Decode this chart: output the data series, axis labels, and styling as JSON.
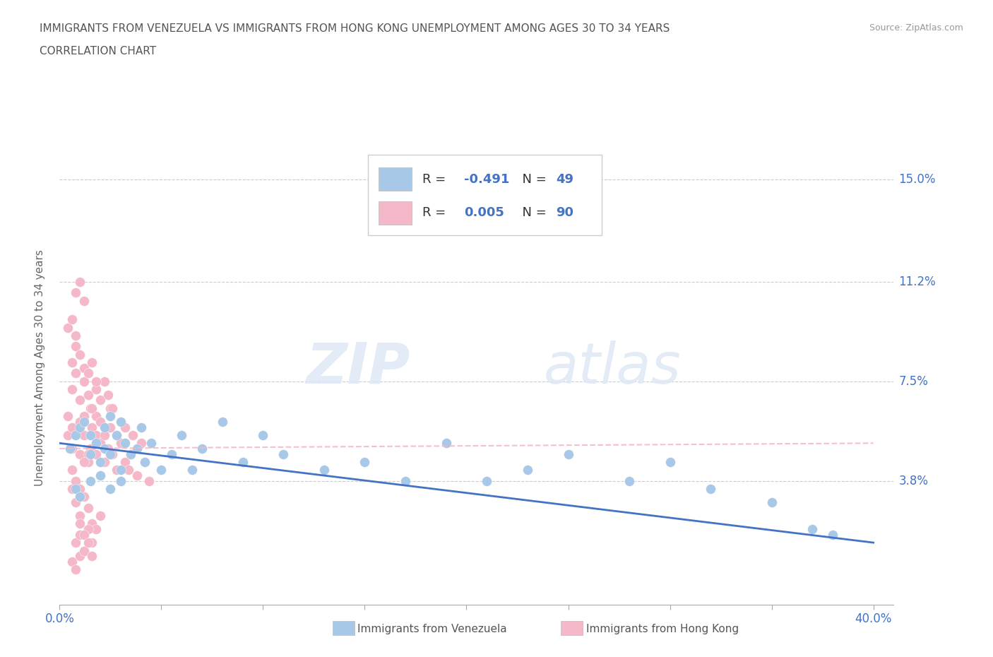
{
  "title_line1": "IMMIGRANTS FROM VENEZUELA VS IMMIGRANTS FROM HONG KONG UNEMPLOYMENT AMONG AGES 30 TO 34 YEARS",
  "title_line2": "CORRELATION CHART",
  "source": "Source: ZipAtlas.com",
  "ylabel": "Unemployment Among Ages 30 to 34 years",
  "xlim": [
    0.0,
    0.41
  ],
  "ylim": [
    -0.008,
    0.168
  ],
  "yticks": [
    0.038,
    0.075,
    0.112,
    0.15
  ],
  "ytick_labels": [
    "3.8%",
    "7.5%",
    "11.2%",
    "15.0%"
  ],
  "xticks": [
    0.0,
    0.05,
    0.1,
    0.15,
    0.2,
    0.25,
    0.3,
    0.35,
    0.4
  ],
  "xtick_labels": [
    "0.0%",
    "",
    "",
    "",
    "",
    "",
    "",
    "",
    "40.0%"
  ],
  "venezuela_color": "#a8c8e8",
  "hong_kong_color": "#f4b8c8",
  "venezuela_line_color": "#4472c4",
  "hong_kong_line_color": "#f4b8c8",
  "venezuela_R": -0.491,
  "venezuela_N": 49,
  "hong_kong_R": 0.005,
  "hong_kong_N": 90,
  "watermark_zip": "ZIP",
  "watermark_atlas": "atlas",
  "legend_label_venezuela": "Immigrants from Venezuela",
  "legend_label_hong_kong": "Immigrants from Hong Kong",
  "venezuela_x": [
    0.005,
    0.008,
    0.01,
    0.012,
    0.015,
    0.015,
    0.018,
    0.02,
    0.022,
    0.022,
    0.025,
    0.025,
    0.028,
    0.03,
    0.03,
    0.032,
    0.035,
    0.038,
    0.04,
    0.042,
    0.045,
    0.05,
    0.055,
    0.06,
    0.065,
    0.07,
    0.08,
    0.09,
    0.1,
    0.11,
    0.13,
    0.15,
    0.17,
    0.19,
    0.21,
    0.23,
    0.25,
    0.28,
    0.3,
    0.32,
    0.35,
    0.37,
    0.38,
    0.008,
    0.01,
    0.015,
    0.02,
    0.025,
    0.03
  ],
  "venezuela_y": [
    0.05,
    0.055,
    0.058,
    0.06,
    0.048,
    0.055,
    0.052,
    0.045,
    0.05,
    0.058,
    0.048,
    0.062,
    0.055,
    0.042,
    0.06,
    0.052,
    0.048,
    0.05,
    0.058,
    0.045,
    0.052,
    0.042,
    0.048,
    0.055,
    0.042,
    0.05,
    0.06,
    0.045,
    0.055,
    0.048,
    0.042,
    0.045,
    0.038,
    0.052,
    0.038,
    0.042,
    0.048,
    0.038,
    0.045,
    0.035,
    0.03,
    0.02,
    0.018,
    0.035,
    0.032,
    0.038,
    0.04,
    0.035,
    0.038
  ],
  "hong_kong_x": [
    0.004,
    0.006,
    0.008,
    0.01,
    0.01,
    0.012,
    0.012,
    0.014,
    0.015,
    0.015,
    0.016,
    0.018,
    0.018,
    0.018,
    0.02,
    0.02,
    0.02,
    0.022,
    0.022,
    0.024,
    0.025,
    0.025,
    0.026,
    0.028,
    0.028,
    0.03,
    0.03,
    0.032,
    0.032,
    0.034,
    0.035,
    0.036,
    0.038,
    0.04,
    0.042,
    0.044,
    0.006,
    0.008,
    0.01,
    0.012,
    0.014,
    0.016,
    0.018,
    0.02,
    0.022,
    0.024,
    0.026,
    0.008,
    0.01,
    0.012,
    0.014,
    0.016,
    0.018,
    0.02,
    0.006,
    0.008,
    0.01,
    0.012,
    0.014,
    0.016,
    0.018,
    0.008,
    0.01,
    0.012,
    0.014,
    0.016,
    0.008,
    0.01,
    0.012,
    0.006,
    0.008,
    0.01,
    0.006,
    0.008,
    0.01,
    0.012,
    0.004,
    0.006,
    0.008,
    0.006,
    0.008,
    0.01,
    0.004,
    0.006,
    0.01,
    0.012,
    0.014,
    0.016,
    0.014,
    0.012
  ],
  "hong_kong_y": [
    0.055,
    0.05,
    0.058,
    0.06,
    0.048,
    0.055,
    0.062,
    0.045,
    0.065,
    0.05,
    0.058,
    0.048,
    0.055,
    0.062,
    0.04,
    0.052,
    0.06,
    0.045,
    0.055,
    0.05,
    0.058,
    0.065,
    0.048,
    0.042,
    0.055,
    0.038,
    0.052,
    0.045,
    0.058,
    0.042,
    0.048,
    0.055,
    0.04,
    0.052,
    0.045,
    0.038,
    0.072,
    0.078,
    0.068,
    0.075,
    0.07,
    0.065,
    0.072,
    0.068,
    0.075,
    0.07,
    0.065,
    0.03,
    0.025,
    0.032,
    0.028,
    0.022,
    0.02,
    0.025,
    0.082,
    0.088,
    0.085,
    0.08,
    0.078,
    0.082,
    0.075,
    0.015,
    0.018,
    0.012,
    0.02,
    0.015,
    0.108,
    0.112,
    0.105,
    0.035,
    0.038,
    0.032,
    0.008,
    0.005,
    0.01,
    0.012,
    0.095,
    0.098,
    0.092,
    0.042,
    0.038,
    0.035,
    0.062,
    0.058,
    0.022,
    0.018,
    0.015,
    0.01,
    0.048,
    0.045
  ]
}
